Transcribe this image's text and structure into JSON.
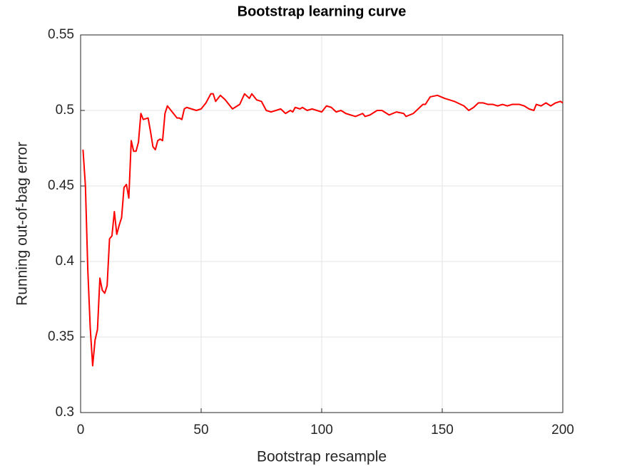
{
  "chart_data": {
    "type": "line",
    "title": "Bootstrap learning curve",
    "x_label": "Bootstrap resample",
    "y_label": "Running out-of-bag error",
    "xlim": [
      0,
      200
    ],
    "xticks": [
      0,
      50,
      100,
      150,
      200
    ],
    "ylim": [
      0.3,
      0.55
    ],
    "yticks": [
      0.3,
      0.35,
      0.4,
      0.45,
      0.5,
      0.55
    ],
    "grid": true,
    "series": [
      {
        "color": "#ff0000",
        "x": [
          1,
          2,
          3,
          4,
          5,
          6,
          7,
          8,
          9,
          10,
          11,
          12,
          13,
          14,
          15,
          16,
          17,
          18,
          19,
          20,
          21,
          22,
          23,
          24,
          25,
          26,
          28,
          29,
          30,
          31,
          32,
          33,
          34,
          35,
          36,
          38,
          40,
          41,
          42,
          43,
          44,
          46,
          48,
          50,
          52,
          54,
          55,
          56,
          58,
          60,
          63,
          66,
          68,
          70,
          71,
          73,
          75,
          77,
          79,
          81,
          83,
          85,
          87,
          88,
          89,
          91,
          92,
          94,
          96,
          98,
          100,
          102,
          104,
          106,
          108,
          110,
          112,
          114,
          117,
          118,
          120,
          123,
          125,
          128,
          131,
          134,
          135,
          138,
          140,
          142,
          143,
          145,
          148,
          151,
          155,
          159,
          161,
          163,
          165,
          167,
          169,
          171,
          173,
          175,
          177,
          179,
          182,
          184,
          186,
          188,
          189,
          191,
          193,
          195,
          197,
          199,
          200
        ],
        "values": [
          0.474,
          0.45,
          0.394,
          0.356,
          0.331,
          0.348,
          0.355,
          0.389,
          0.381,
          0.379,
          0.384,
          0.415,
          0.417,
          0.433,
          0.418,
          0.424,
          0.429,
          0.449,
          0.451,
          0.442,
          0.48,
          0.473,
          0.473,
          0.479,
          0.498,
          0.494,
          0.495,
          0.486,
          0.476,
          0.474,
          0.48,
          0.481,
          0.48,
          0.498,
          0.503,
          0.499,
          0.495,
          0.495,
          0.494,
          0.501,
          0.502,
          0.501,
          0.5,
          0.501,
          0.505,
          0.511,
          0.511,
          0.506,
          0.51,
          0.507,
          0.501,
          0.504,
          0.511,
          0.508,
          0.511,
          0.507,
          0.506,
          0.5,
          0.499,
          0.5,
          0.501,
          0.498,
          0.5,
          0.499,
          0.502,
          0.501,
          0.502,
          0.5,
          0.501,
          0.5,
          0.499,
          0.503,
          0.502,
          0.499,
          0.5,
          0.498,
          0.497,
          0.496,
          0.498,
          0.496,
          0.497,
          0.5,
          0.5,
          0.497,
          0.499,
          0.498,
          0.496,
          0.498,
          0.501,
          0.504,
          0.504,
          0.509,
          0.51,
          0.508,
          0.506,
          0.503,
          0.5,
          0.502,
          0.505,
          0.505,
          0.504,
          0.504,
          0.503,
          0.504,
          0.503,
          0.504,
          0.504,
          0.503,
          0.501,
          0.5,
          0.504,
          0.503,
          0.505,
          0.503,
          0.505,
          0.506,
          0.505
        ]
      }
    ]
  }
}
